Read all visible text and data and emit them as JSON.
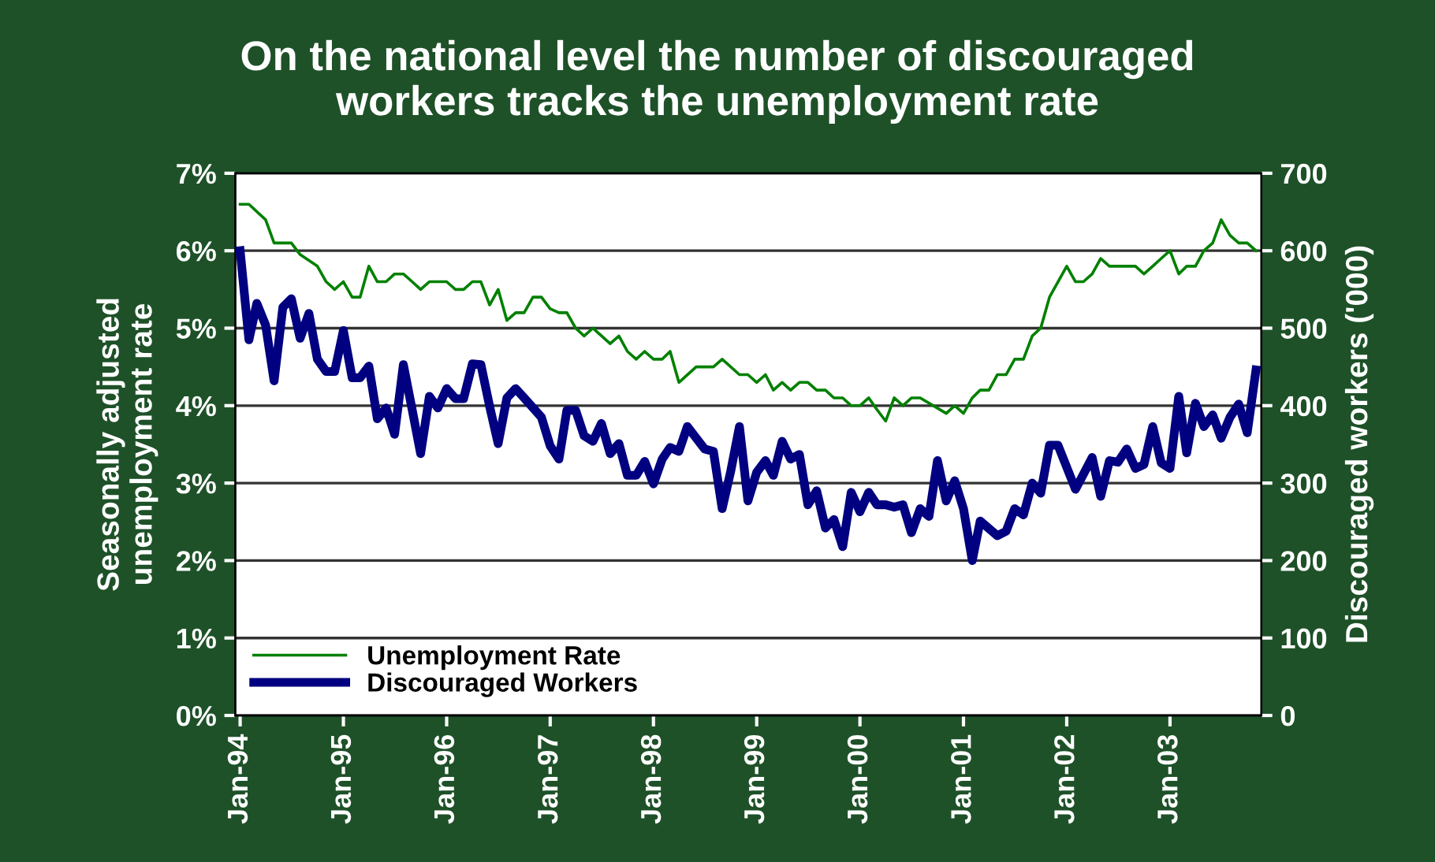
{
  "chart_data": {
    "type": "line",
    "title": "On the national level the number of discouraged\nworkers tracks the unemployment rate",
    "ylabel": "Seasonally adjusted\nunemployment rate",
    "y2label": "Discouraged workers ('000)",
    "xlim": [
      "1993-12-15",
      "2003-11-20"
    ],
    "xticks": [
      {
        "value": "1994-01",
        "label": "Jan-94"
      },
      {
        "value": "1995-01",
        "label": "Jan-95"
      },
      {
        "value": "1996-01",
        "label": "Jan-96"
      },
      {
        "value": "1997-01",
        "label": "Jan-97"
      },
      {
        "value": "1998-01",
        "label": "Jan-98"
      },
      {
        "value": "1999-01",
        "label": "Jan-99"
      },
      {
        "value": "2000-01",
        "label": "Jan-00"
      },
      {
        "value": "2001-01",
        "label": "Jan-01"
      },
      {
        "value": "2002-01",
        "label": "Jan-02"
      },
      {
        "value": "2003-01",
        "label": "Jan-03"
      }
    ],
    "ylim": [
      0,
      7
    ],
    "yticks": [
      {
        "value": 0,
        "label": "0%"
      },
      {
        "value": 1,
        "label": "1%"
      },
      {
        "value": 2,
        "label": "2%"
      },
      {
        "value": 3,
        "label": "3%"
      },
      {
        "value": 4,
        "label": "4%"
      },
      {
        "value": 5,
        "label": "5%"
      },
      {
        "value": 6,
        "label": "6%"
      },
      {
        "value": 7,
        "label": "7%"
      }
    ],
    "y2lim": [
      0,
      700
    ],
    "y2ticks": [
      0,
      100,
      200,
      300,
      400,
      500,
      600,
      700
    ],
    "grid": "y",
    "legend": "bottom left",
    "marker": "none",
    "line_style": "solid",
    "series": [
      {
        "name": "Unemployment Rate",
        "color": "#008000",
        "axis": "y",
        "x": [
          "1994-01",
          "1994-02",
          "1994-04",
          "1994-05",
          "1994-07",
          "1994-08",
          "1994-10",
          "1994-11",
          "1994-12",
          "1995-01",
          "1995-02",
          "1995-03",
          "1995-04",
          "1995-05",
          "1995-06",
          "1995-07",
          "1995-08",
          "1995-09",
          "1995-10",
          "1995-11",
          "1996-01",
          "1996-02",
          "1996-03",
          "1996-04",
          "1996-05",
          "1996-06",
          "1996-07",
          "1996-08",
          "1996-09",
          "1996-10",
          "1996-11",
          "1996-12",
          "1997-01",
          "1997-02",
          "1997-03",
          "1997-04",
          "1997-05",
          "1997-06",
          "1997-08",
          "1997-09",
          "1997-10",
          "1997-11",
          "1997-12",
          "1998-01",
          "1998-02",
          "1998-03",
          "1998-04",
          "1998-06",
          "1998-08",
          "1998-09",
          "1998-11",
          "1998-12",
          "1999-01",
          "1999-02",
          "1999-03",
          "1999-04",
          "1999-05",
          "1999-06",
          "1999-07",
          "1999-08",
          "1999-09",
          "1999-10",
          "1999-11",
          "1999-12",
          "2000-01",
          "2000-02",
          "2000-03",
          "2000-04",
          "2000-05",
          "2000-06",
          "2000-07",
          "2000-08",
          "2000-11",
          "2000-12",
          "2001-01",
          "2001-02",
          "2001-03",
          "2001-04",
          "2001-05",
          "2001-06",
          "2001-07",
          "2001-08",
          "2001-09",
          "2001-10",
          "2001-11",
          "2002-01",
          "2002-02",
          "2002-03",
          "2002-04",
          "2002-05",
          "2002-06",
          "2002-09",
          "2002-10",
          "2002-11",
          "2002-12",
          "2003-01",
          "2003-02",
          "2003-03",
          "2003-04",
          "2003-05",
          "2003-06",
          "2003-07",
          "2003-08",
          "2003-09",
          "2003-10",
          "2003-11"
        ],
        "values": [
          6.6,
          6.6,
          6.4,
          6.1,
          6.1,
          5.95,
          5.8,
          5.6,
          5.5,
          5.6,
          5.4,
          5.4,
          5.8,
          5.6,
          5.6,
          5.7,
          5.7,
          5.6,
          5.5,
          5.6,
          5.6,
          5.5,
          5.5,
          5.6,
          5.6,
          5.3,
          5.5,
          5.1,
          5.2,
          5.2,
          5.4,
          5.4,
          5.25,
          5.2,
          5.2,
          5.0,
          4.9,
          5.0,
          4.8,
          4.9,
          4.7,
          4.6,
          4.7,
          4.6,
          4.6,
          4.7,
          4.3,
          4.5,
          4.5,
          4.6,
          4.4,
          4.4,
          4.3,
          4.4,
          4.2,
          4.3,
          4.2,
          4.3,
          4.3,
          4.2,
          4.2,
          4.1,
          4.1,
          4.0,
          4.0,
          4.1,
          3.95,
          3.8,
          4.1,
          4.0,
          4.1,
          4.1,
          3.9,
          4.0,
          3.9,
          4.1,
          4.2,
          4.2,
          4.4,
          4.4,
          4.6,
          4.6,
          4.9,
          5.0,
          5.4,
          5.8,
          5.6,
          5.6,
          5.7,
          5.9,
          5.8,
          5.8,
          5.7,
          5.8,
          5.9,
          6.0,
          5.7,
          5.8,
          5.8,
          6.0,
          6.1,
          6.4,
          6.2,
          6.1,
          6.1,
          6.0
        ]
      },
      {
        "name": "Discouraged Workers",
        "color": "#000080",
        "axis": "y2",
        "x": [
          "1994-01",
          "1994-02",
          "1994-03",
          "1994-04",
          "1994-05",
          "1994-06",
          "1994-07",
          "1994-08",
          "1994-09",
          "1994-10",
          "1994-11",
          "1994-12",
          "1995-01",
          "1995-02",
          "1995-03",
          "1995-04",
          "1995-05",
          "1995-06",
          "1995-07",
          "1995-08",
          "1995-09",
          "1995-10",
          "1995-11",
          "1995-12",
          "1996-01",
          "1996-02",
          "1996-03",
          "1996-04",
          "1996-05",
          "1996-06",
          "1996-07",
          "1996-08",
          "1996-09",
          "1996-10",
          "1996-12",
          "1997-01",
          "1997-02",
          "1997-03",
          "1997-04",
          "1997-05",
          "1997-06",
          "1997-07",
          "1997-08",
          "1997-09",
          "1997-10",
          "1997-11",
          "1997-12",
          "1998-01",
          "1998-02",
          "1998-03",
          "1998-04",
          "1998-05",
          "1998-07",
          "1998-08",
          "1998-09",
          "1998-10",
          "1998-11",
          "1998-12",
          "1999-01",
          "1999-02",
          "1999-03",
          "1999-04",
          "1999-05",
          "1999-06",
          "1999-07",
          "1999-08",
          "1999-09",
          "1999-10",
          "1999-11",
          "1999-12",
          "2000-01",
          "2000-02",
          "2000-03",
          "2000-04",
          "2000-05",
          "2000-06",
          "2000-07",
          "2000-08",
          "2000-09",
          "2000-10",
          "2000-11",
          "2000-12",
          "2001-01",
          "2001-02",
          "2001-03",
          "2001-05",
          "2001-06",
          "2001-07",
          "2001-08",
          "2001-09",
          "2001-10",
          "2001-11",
          "2001-12",
          "2002-02",
          "2002-04",
          "2002-05",
          "2002-06",
          "2002-07",
          "2002-08",
          "2002-09",
          "2002-10",
          "2002-11",
          "2002-12",
          "2003-01",
          "2003-02",
          "2003-03",
          "2003-04",
          "2003-05",
          "2003-06",
          "2003-07",
          "2003-08",
          "2003-09",
          "2003-10",
          "2003-11"
        ],
        "values": [
          600,
          485,
          532,
          504,
          432,
          527,
          538,
          487,
          519,
          460,
          444,
          444,
          497,
          436,
          436,
          451,
          383,
          397,
          363,
          453,
          395,
          338,
          412,
          397,
          422,
          409,
          409,
          454,
          453,
          399,
          351,
          410,
          422,
          410,
          385,
          348,
          331,
          394,
          394,
          361,
          354,
          377,
          338,
          351,
          310,
          310,
          328,
          299,
          331,
          346,
          341,
          373,
          344,
          341,
          267,
          315,
          373,
          277,
          314,
          329,
          310,
          354,
          331,
          337,
          272,
          290,
          242,
          253,
          218,
          288,
          263,
          288,
          272,
          272,
          269,
          272,
          236,
          267,
          257,
          329,
          277,
          303,
          267,
          200,
          251,
          232,
          238,
          267,
          259,
          300,
          287,
          349,
          349,
          292,
          333,
          283,
          329,
          327,
          344,
          319,
          324,
          373,
          326,
          319,
          412,
          339,
          403,
          373,
          388,
          358,
          385,
          402,
          365,
          446
        ]
      }
    ]
  }
}
